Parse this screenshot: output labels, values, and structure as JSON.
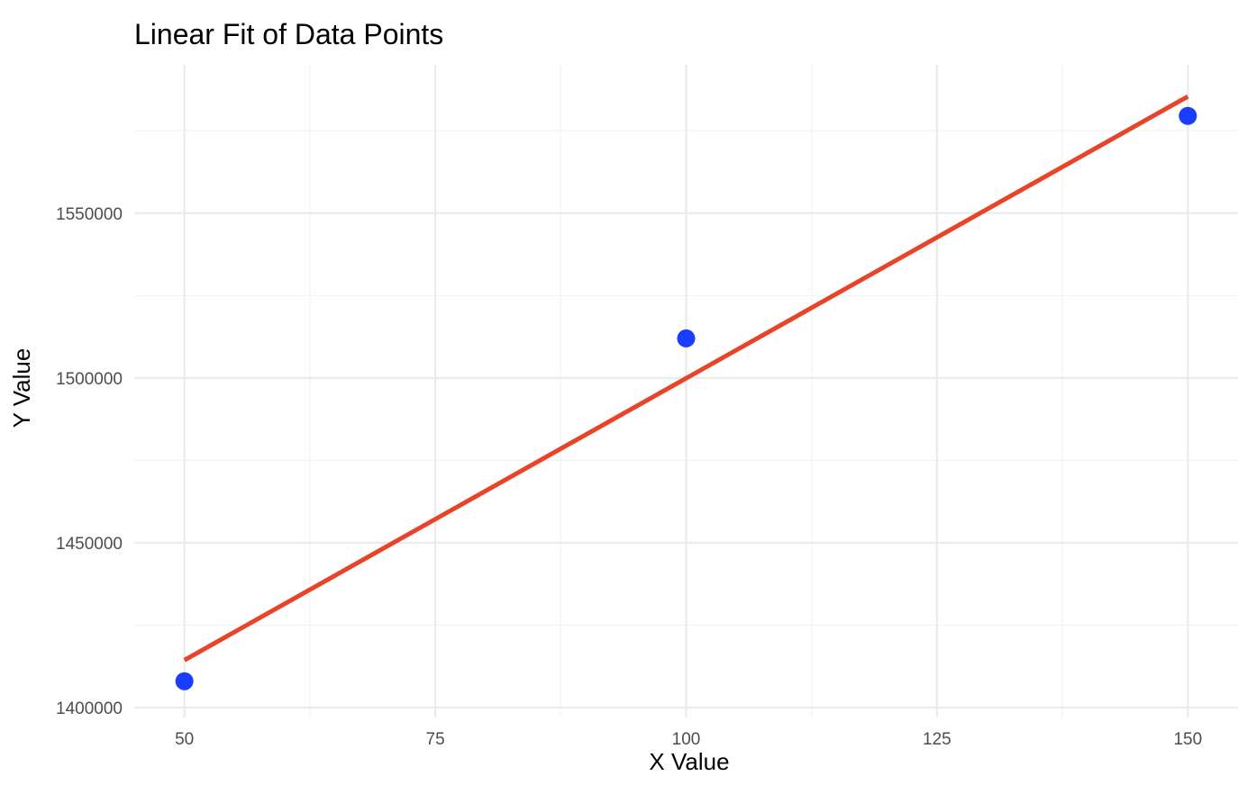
{
  "chart_data": {
    "type": "scatter",
    "title": "Linear Fit of Data Points",
    "xlabel": "X Value",
    "ylabel": "Y Value",
    "xlim": [
      45,
      155
    ],
    "ylim": [
      1397000,
      1595000
    ],
    "x_ticks": [
      50,
      75,
      100,
      125,
      150
    ],
    "x_tick_labels": [
      "50",
      "75",
      "100",
      "125",
      "150"
    ],
    "y_ticks": [
      1400000,
      1450000,
      1500000,
      1550000
    ],
    "y_tick_labels": [
      "1400000",
      "1450000",
      "1500000",
      "1550000"
    ],
    "grid": true,
    "legend": "none",
    "series": [
      {
        "kind": "points",
        "color": "#1a3cff",
        "x": [
          50,
          100,
          150
        ],
        "y": [
          1408000,
          1512000,
          1579500
        ]
      },
      {
        "kind": "fit-line",
        "color": "#e8442a",
        "x": [
          50,
          150
        ],
        "y": [
          1414400,
          1585400
        ]
      }
    ]
  }
}
